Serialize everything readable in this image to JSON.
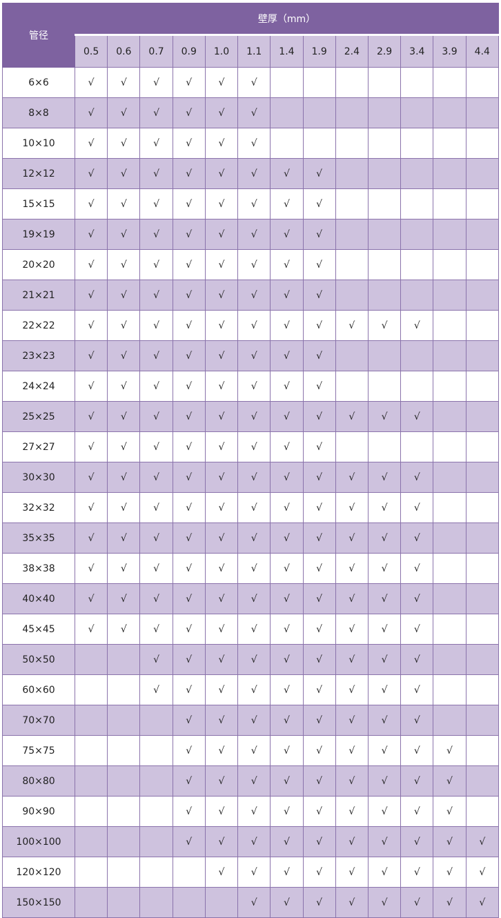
{
  "header": {
    "pipe_size_label": "管径",
    "wall_thickness_label": "壁厚（mm）"
  },
  "colors": {
    "header": "#7e62a0",
    "subheader": "#cfc3de",
    "alt_row": "#cec2de"
  },
  "thicknesses": [
    "0.5",
    "0.6",
    "0.7",
    "0.9",
    "1.0",
    "1.1",
    "1.4",
    "1.9",
    "2.4",
    "2.9",
    "3.4",
    "3.9",
    "4.4"
  ],
  "rows": [
    {
      "size": "6×6",
      "cells": [
        "√",
        "√",
        "√",
        "√",
        "√",
        "√",
        "",
        "",
        "",
        "",
        "",
        "",
        ""
      ]
    },
    {
      "size": "8×8",
      "cells": [
        "√",
        "√",
        "√",
        "√",
        "√",
        "√",
        "",
        "",
        "",
        "",
        "",
        "",
        ""
      ]
    },
    {
      "size": "10×10",
      "cells": [
        "√",
        "√",
        "√",
        "√",
        "√",
        "√",
        "",
        "",
        "",
        "",
        "",
        "",
        ""
      ]
    },
    {
      "size": "12×12",
      "cells": [
        "√",
        "√",
        "√",
        "√",
        "√",
        "√",
        "√",
        "√",
        "",
        "",
        "",
        "",
        ""
      ]
    },
    {
      "size": "15×15",
      "cells": [
        "√",
        "√",
        "√",
        "√",
        "√",
        "√",
        "√",
        "√",
        "",
        "",
        "",
        "",
        ""
      ]
    },
    {
      "size": "19×19",
      "cells": [
        "√",
        "√",
        "√",
        "√",
        "√",
        "√",
        "√",
        "√",
        "",
        "",
        "",
        "",
        ""
      ]
    },
    {
      "size": "20×20",
      "cells": [
        "√",
        "√",
        "√",
        "√",
        "√",
        "√",
        "√",
        "√",
        "",
        "",
        "",
        "",
        ""
      ]
    },
    {
      "size": "21×21",
      "cells": [
        "√",
        "√",
        "√",
        "√",
        "√",
        "√",
        "√",
        "√",
        "",
        "",
        "",
        "",
        ""
      ]
    },
    {
      "size": "22×22",
      "cells": [
        "√",
        "√",
        "√",
        "√",
        "√",
        "√",
        "√",
        "√",
        "√",
        "√",
        "√",
        "",
        ""
      ]
    },
    {
      "size": "23×23",
      "cells": [
        "√",
        "√",
        "√",
        "√",
        "√",
        "√",
        "√",
        "√",
        "",
        "",
        "",
        "",
        ""
      ]
    },
    {
      "size": "24×24",
      "cells": [
        "√",
        "√",
        "√",
        "√",
        "√",
        "√",
        "√",
        "√",
        "",
        "",
        "",
        "",
        ""
      ]
    },
    {
      "size": "25×25",
      "cells": [
        "√",
        "√",
        "√",
        "√",
        "√",
        "√",
        "√",
        "√",
        "√",
        "√",
        "√",
        "",
        ""
      ]
    },
    {
      "size": "27×27",
      "cells": [
        "√",
        "√",
        "√",
        "√",
        "√",
        "√",
        "√",
        "√",
        "",
        "",
        "",
        "",
        ""
      ]
    },
    {
      "size": "30×30",
      "cells": [
        "√",
        "√",
        "√",
        "√",
        "√",
        "√",
        "√",
        "√",
        "√",
        "√",
        "√",
        "",
        ""
      ]
    },
    {
      "size": "32×32",
      "cells": [
        "√",
        "√",
        "√",
        "√",
        "√",
        "√",
        "√",
        "√",
        "√",
        "√",
        "√",
        "",
        ""
      ]
    },
    {
      "size": "35×35",
      "cells": [
        "√",
        "√",
        "√",
        "√",
        "√",
        "√",
        "√",
        "√",
        "√",
        "√",
        "√",
        "",
        ""
      ]
    },
    {
      "size": "38×38",
      "cells": [
        "√",
        "√",
        "√",
        "√",
        "√",
        "√",
        "√",
        "√",
        "√",
        "√",
        "√",
        "",
        ""
      ]
    },
    {
      "size": "40×40",
      "cells": [
        "√",
        "√",
        "√",
        "√",
        "√",
        "√",
        "√",
        "√",
        "√",
        "√",
        "√",
        "",
        ""
      ]
    },
    {
      "size": "45×45",
      "cells": [
        "√",
        "√",
        "√",
        "√",
        "√",
        "√",
        "√",
        "√",
        "√",
        "√",
        "√",
        "",
        ""
      ]
    },
    {
      "size": "50×50",
      "cells": [
        "",
        "",
        "√",
        "√",
        "√",
        "√",
        "√",
        "√",
        "√",
        "√",
        "√",
        "",
        ""
      ]
    },
    {
      "size": "60×60",
      "cells": [
        "",
        "",
        "√",
        "√",
        "√",
        "√",
        "√",
        "√",
        "√",
        "√",
        "√",
        "",
        ""
      ]
    },
    {
      "size": "70×70",
      "cells": [
        "",
        "",
        "",
        "√",
        "√",
        "√",
        "√",
        "√",
        "√",
        "√",
        "√",
        "",
        ""
      ]
    },
    {
      "size": "75×75",
      "cells": [
        "",
        "",
        "",
        "√",
        "√",
        "√",
        "√",
        "√",
        "√",
        "√",
        "√",
        "√",
        ""
      ]
    },
    {
      "size": "80×80",
      "cells": [
        "",
        "",
        "",
        "√",
        "√",
        "√",
        "√",
        "√",
        "√",
        "√",
        "√",
        "√",
        ""
      ]
    },
    {
      "size": "90×90",
      "cells": [
        "",
        "",
        "",
        "√",
        "√",
        "√",
        "√",
        "√",
        "√",
        "√",
        "√",
        "√",
        ""
      ]
    },
    {
      "size": "100×100",
      "cells": [
        "",
        "",
        "",
        "√",
        "√",
        "√",
        "√",
        "√",
        "√",
        "√",
        "√",
        "√",
        "√"
      ]
    },
    {
      "size": "120×120",
      "cells": [
        "",
        "",
        "",
        "",
        "√",
        "√",
        "√",
        "√",
        "√",
        "√",
        "√",
        "√",
        "√"
      ]
    },
    {
      "size": "150×150",
      "cells": [
        "",
        "",
        "",
        "",
        "",
        "√",
        "√",
        "√",
        "√",
        "√",
        "√",
        "√",
        "√"
      ]
    }
  ]
}
